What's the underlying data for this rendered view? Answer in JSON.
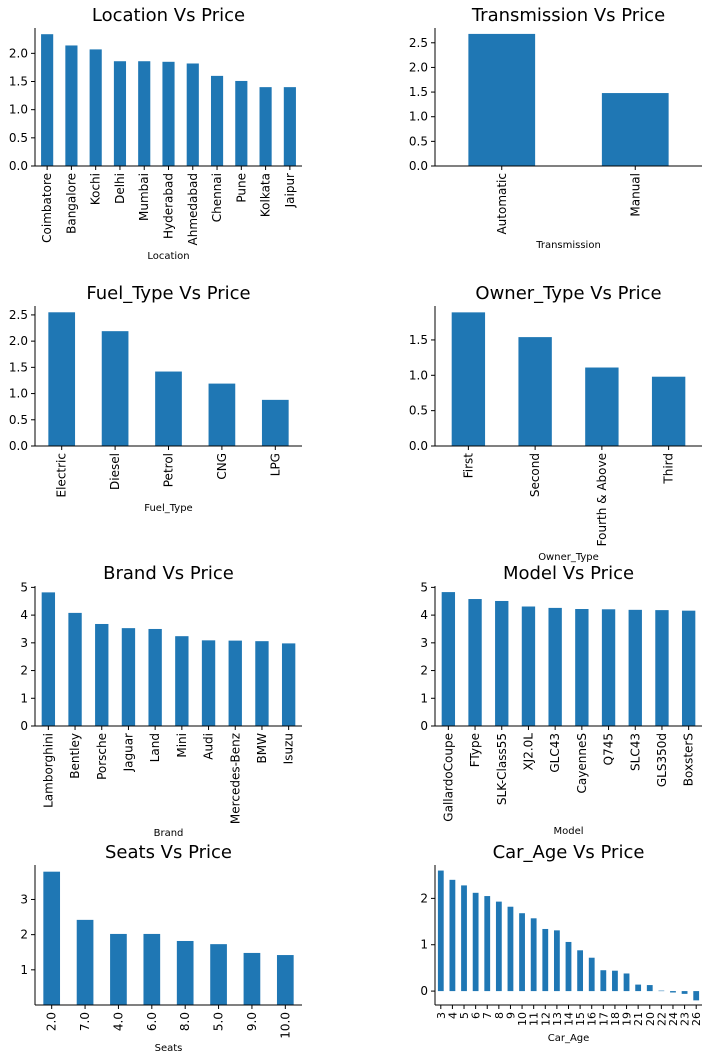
{
  "colors": {
    "bar": "#1f77b4",
    "axis": "#000000",
    "background": "#ffffff"
  },
  "chart_data": [
    {
      "type": "bar",
      "title": "Location Vs Price",
      "xlabel": "Location",
      "ylabel": "",
      "categories": [
        "Coimbatore",
        "Bangalore",
        "Kochi",
        "Delhi",
        "Mumbai",
        "Hyderabad",
        "Ahmedabad",
        "Chennai",
        "Pune",
        "Kolkata",
        "Jaipur"
      ],
      "values": [
        2.34,
        2.14,
        2.07,
        1.86,
        1.86,
        1.85,
        1.82,
        1.6,
        1.51,
        1.4,
        1.4
      ],
      "ylim": [
        0,
        2.45
      ],
      "yticks": [
        0.0,
        0.5,
        1.0,
        1.5,
        2.0
      ],
      "yticklabels": [
        "0.0",
        "0.5",
        "1.0",
        "1.5",
        "2.0"
      ],
      "grid": false
    },
    {
      "type": "bar",
      "title": "Transmission Vs Price",
      "xlabel": "Transmission",
      "ylabel": "",
      "categories": [
        "Automatic",
        "Manual"
      ],
      "values": [
        2.68,
        1.48
      ],
      "ylim": [
        0,
        2.8
      ],
      "yticks": [
        0.0,
        0.5,
        1.0,
        1.5,
        2.0,
        2.5
      ],
      "yticklabels": [
        "0.0",
        "0.5",
        "1.0",
        "1.5",
        "2.0",
        "2.5"
      ],
      "grid": false
    },
    {
      "type": "bar",
      "title": "Fuel_Type Vs Price",
      "xlabel": "Fuel_Type",
      "ylabel": "",
      "categories": [
        "Electric",
        "Diesel",
        "Petrol",
        "CNG",
        "LPG"
      ],
      "values": [
        2.55,
        2.19,
        1.42,
        1.19,
        0.88
      ],
      "ylim": [
        0,
        2.67
      ],
      "yticks": [
        0.0,
        0.5,
        1.0,
        1.5,
        2.0,
        2.5
      ],
      "yticklabels": [
        "0.0",
        "0.5",
        "1.0",
        "1.5",
        "2.0",
        "2.5"
      ],
      "grid": false
    },
    {
      "type": "bar",
      "title": "Owner_Type Vs Price",
      "xlabel": "Owner_Type",
      "ylabel": "",
      "categories": [
        "First",
        "Second",
        "Fourth & Above",
        "Third"
      ],
      "values": [
        1.89,
        1.54,
        1.11,
        0.98
      ],
      "ylim": [
        0,
        1.98
      ],
      "yticks": [
        0.0,
        0.5,
        1.0,
        1.5
      ],
      "yticklabels": [
        "0.0",
        "0.5",
        "1.0",
        "1.5"
      ],
      "grid": false
    },
    {
      "type": "bar",
      "title": "Brand Vs Price",
      "xlabel": "Brand",
      "ylabel": "",
      "categories": [
        "Lamborghini",
        "Bentley",
        "Porsche",
        "Jaguar",
        "Land",
        "Mini",
        "Audi",
        "Mercedes-Benz",
        "BMW",
        "Isuzu"
      ],
      "values": [
        4.82,
        4.08,
        3.68,
        3.53,
        3.5,
        3.24,
        3.09,
        3.08,
        3.06,
        2.98
      ],
      "ylim": [
        0,
        5.05
      ],
      "yticks": [
        0,
        1,
        2,
        3,
        4,
        5
      ],
      "yticklabels": [
        "0",
        "1",
        "2",
        "3",
        "4",
        "5"
      ],
      "grid": false
    },
    {
      "type": "bar",
      "title": "Model Vs Price",
      "xlabel": "Model",
      "ylabel": "",
      "categories": [
        "GallardoCoupe",
        "FType",
        "SLK-Class55",
        "XJ2.0L",
        "GLC43",
        "CayenneS",
        "Q745",
        "SLC43",
        "GLS350d",
        "BoxsterS"
      ],
      "values": [
        4.83,
        4.58,
        4.51,
        4.31,
        4.26,
        4.22,
        4.21,
        4.19,
        4.18,
        4.16
      ],
      "ylim": [
        0,
        5.05
      ],
      "yticks": [
        0,
        1,
        2,
        3,
        4,
        5
      ],
      "yticklabels": [
        "0",
        "1",
        "2",
        "3",
        "4",
        "5"
      ],
      "grid": false
    },
    {
      "type": "bar",
      "title": "Seats Vs Price",
      "xlabel": "Seats",
      "ylabel": "",
      "categories": [
        "2.0",
        "7.0",
        "4.0",
        "6.0",
        "8.0",
        "5.0",
        "9.0",
        "10.0"
      ],
      "values": [
        3.79,
        2.42,
        2.02,
        2.02,
        1.82,
        1.73,
        1.48,
        1.42
      ],
      "ylim": [
        0,
        3.98
      ],
      "yticks": [
        1,
        2,
        3
      ],
      "yticklabels": [
        "1",
        "2",
        "3"
      ],
      "grid": false
    },
    {
      "type": "bar",
      "title": "Car_Age Vs Price",
      "xlabel": "Car_Age",
      "ylabel": "",
      "categories": [
        "3",
        "4",
        "5",
        "6",
        "7",
        "8",
        "9",
        "10",
        "11",
        "12",
        "13",
        "14",
        "15",
        "16",
        "17",
        "18",
        "19",
        "21",
        "20",
        "22",
        "24",
        "23",
        "26"
      ],
      "values": [
        2.6,
        2.4,
        2.28,
        2.12,
        2.05,
        1.93,
        1.82,
        1.68,
        1.57,
        1.34,
        1.31,
        1.06,
        0.88,
        0.72,
        0.45,
        0.44,
        0.38,
        0.14,
        0.13,
        0.01,
        -0.03,
        -0.06,
        -0.2
      ],
      "ylim": [
        -0.3,
        2.72
      ],
      "yticks": [
        0,
        1,
        2
      ],
      "yticklabels": [
        "0",
        "1",
        "2"
      ],
      "grid": false
    }
  ]
}
